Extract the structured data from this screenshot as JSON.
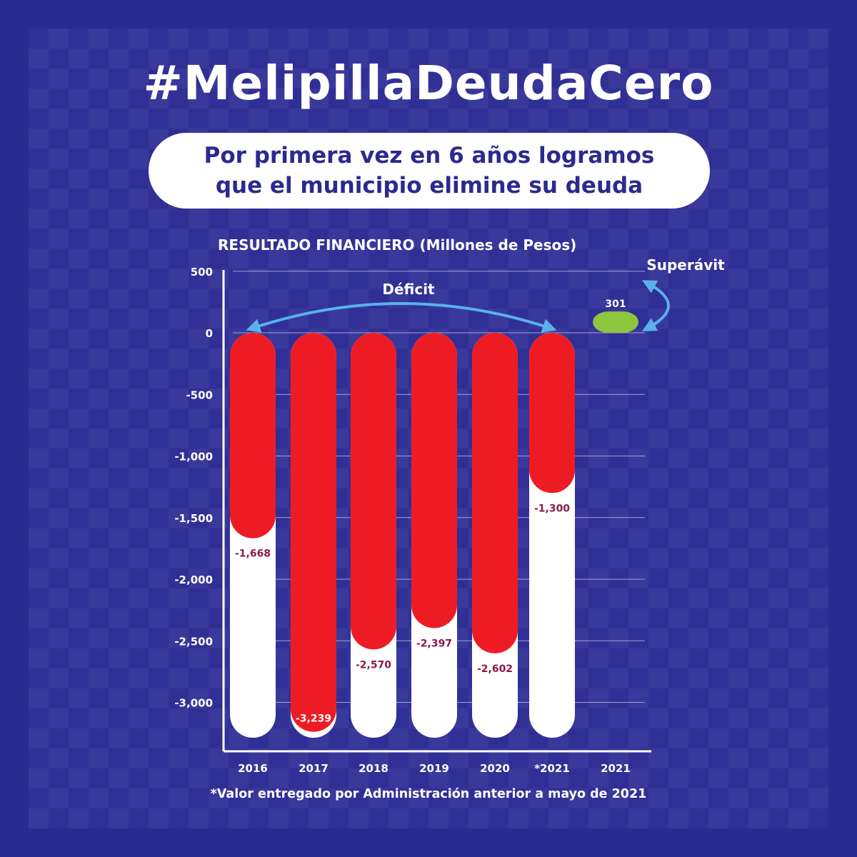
{
  "header": {
    "hashtag": "#MelipillaDeudaCero",
    "subtitle_line1": "Por primera vez en 6 años logramos",
    "subtitle_line2": "que el municipio elimine su deuda"
  },
  "chart_data": {
    "type": "bar",
    "title": "RESULTADO FINANCIERO (Millones de Pesos)",
    "categories": [
      "2016",
      "2017",
      "2018",
      "2019",
      "2020",
      "*2021",
      "2021"
    ],
    "values": [
      -1668,
      -3239,
      -2570,
      -2397,
      -2602,
      -1300,
      301
    ],
    "value_labels": [
      "-1,668",
      "-3,239",
      "-2,570",
      "-2,397",
      "-2,602",
      "-1,300",
      "301"
    ],
    "yticks": [
      500,
      0,
      -500,
      -1000,
      -1500,
      -2000,
      -2500,
      -3000
    ],
    "ytick_labels": [
      "500",
      "0",
      "-500",
      "-1,000",
      "-1,500",
      "-2,000",
      "-2,500",
      "-3,000"
    ],
    "ylim": [
      -3300,
      500
    ],
    "grid": true,
    "annotations": {
      "deficit": "Déficit",
      "surplus": "Superávit"
    },
    "colors": {
      "deficit": "#ed1c24",
      "surplus": "#8dc63f",
      "track": "#ffffff",
      "label": "#8b1a4a",
      "arrow": "#5ab1ea"
    }
  },
  "footnote": "*Valor entregado por Administración anterior a mayo de 2021"
}
